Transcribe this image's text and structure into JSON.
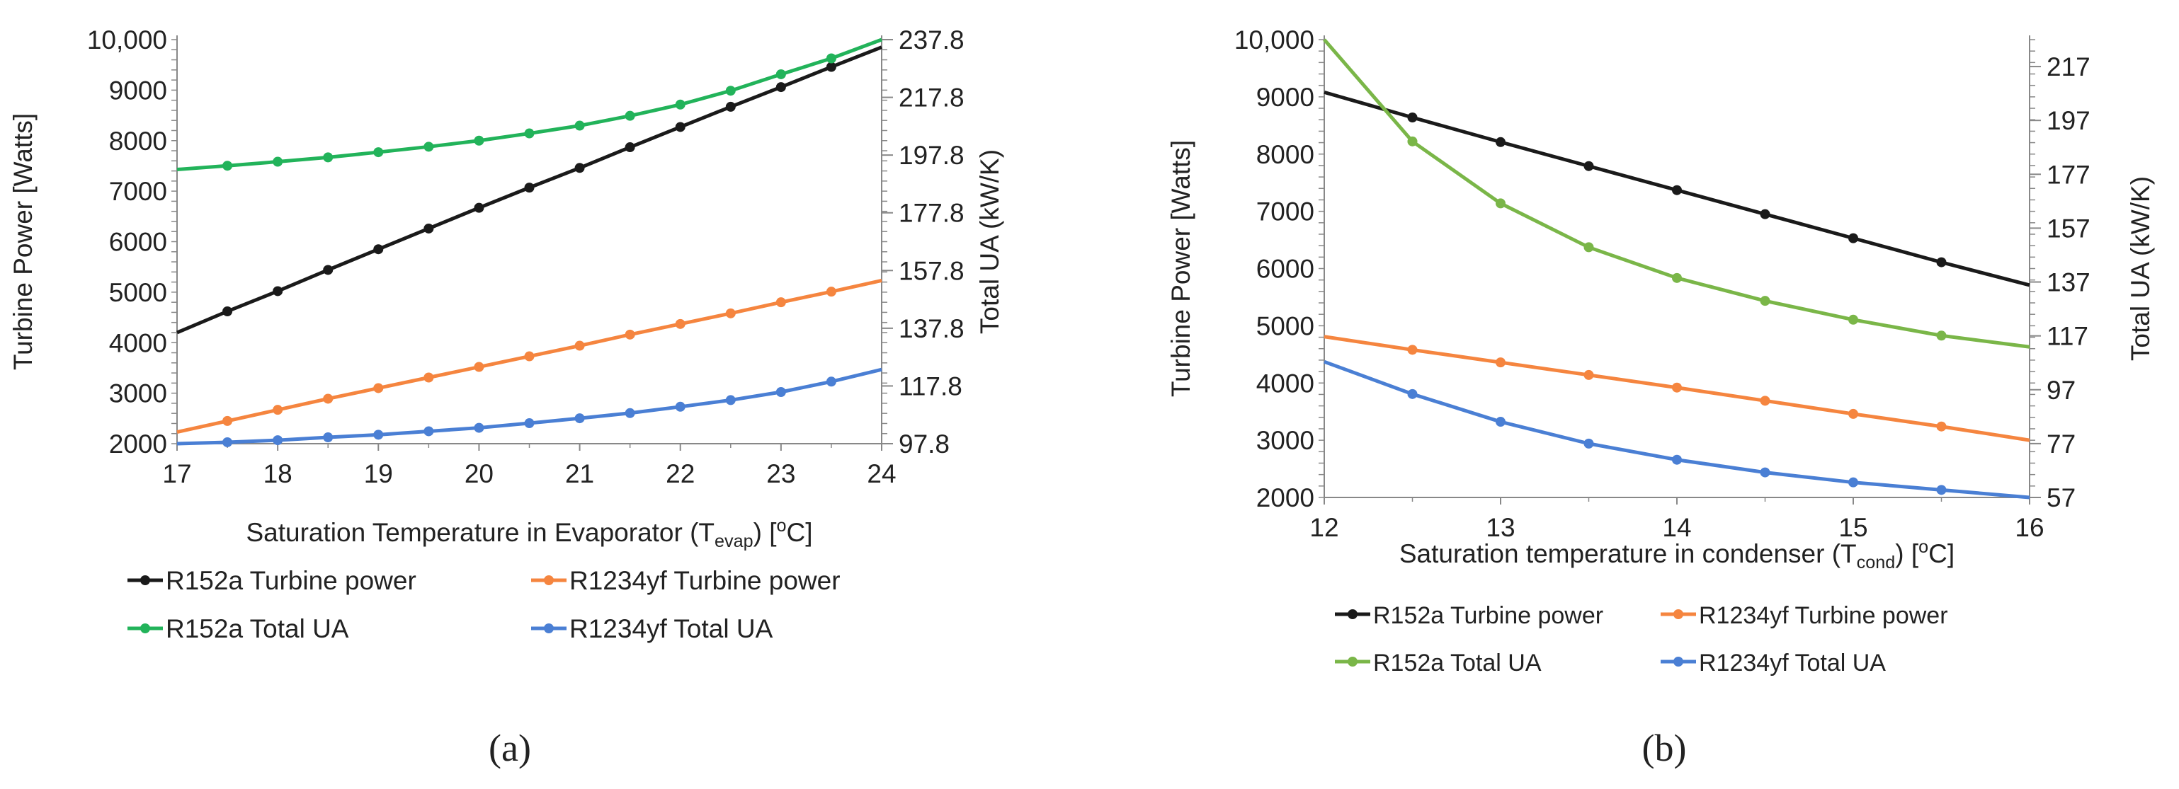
{
  "chart_data": [
    {
      "type": "line",
      "panel_label": "(a)",
      "xlabel": {
        "main": "Saturation Temperature in Evaporator (T",
        "sub": "evap",
        "tail": ") [",
        "sup": "o",
        "end": "C]"
      },
      "ylabel_left": "Turbine Power [Watts]",
      "ylabel_right": "Total UA (kW/K)",
      "xlim": [
        17,
        24
      ],
      "ylim_left": [
        2000,
        10000
      ],
      "ylim_right": [
        97.8,
        237.8
      ],
      "x_ticks": [
        "17",
        "18",
        "19",
        "20",
        "21",
        "22",
        "23",
        "24"
      ],
      "y_ticks_left": [
        "2000",
        "3000",
        "4000",
        "5000",
        "6000",
        "7000",
        "8000",
        "9000",
        "10,000"
      ],
      "y_ticks_right": [
        "97.8",
        "117.8",
        "137.8",
        "157.8",
        "177.8",
        "197.8",
        "217.8",
        "237.8"
      ],
      "legend_position": "bottom",
      "series": [
        {
          "name": "R152a Turbine power",
          "axis": "left",
          "color": "#1a1a1a",
          "x": [
            17,
            17.5,
            18,
            18.5,
            19,
            19.5,
            20,
            20.5,
            21,
            21.5,
            22,
            22.5,
            23,
            23.5,
            24
          ],
          "values": [
            4200,
            4620,
            5020,
            5440,
            5850,
            6260,
            6670,
            7070,
            7460,
            7870,
            8270,
            8670,
            9060,
            9460,
            9850
          ]
        },
        {
          "name": "R1234yf Turbine power",
          "axis": "left",
          "color": "#f5853f",
          "x": [
            17,
            17.5,
            18,
            18.5,
            19,
            19.5,
            20,
            20.5,
            21,
            21.5,
            22,
            22.5,
            23,
            23.5,
            24
          ],
          "values": [
            2230,
            2450,
            2670,
            2890,
            3100,
            3310,
            3520,
            3730,
            3940,
            4160,
            4370,
            4580,
            4800,
            5010,
            5230
          ]
        },
        {
          "name": "R152a Total UA",
          "axis": "right",
          "color": "#22b35a",
          "x": [
            17,
            17.5,
            18,
            18.5,
            19,
            19.5,
            20,
            20.5,
            21,
            21.5,
            22,
            22.5,
            23,
            23.5,
            24
          ],
          "values": [
            192.8,
            194.1,
            195.5,
            197.0,
            198.8,
            200.7,
            202.8,
            205.3,
            208.0,
            211.4,
            215.3,
            220.1,
            225.8,
            231.3,
            237.8
          ]
        },
        {
          "name": "R1234yf Total UA",
          "axis": "right",
          "color": "#4a7fd4",
          "x": [
            17,
            17.5,
            18,
            18.5,
            19,
            19.5,
            20,
            20.5,
            21,
            21.5,
            22,
            22.5,
            23,
            23.5,
            24
          ],
          "values": [
            97.8,
            98.3,
            99.0,
            100.0,
            100.9,
            102.1,
            103.3,
            104.9,
            106.6,
            108.4,
            110.6,
            112.9,
            115.7,
            119.3,
            123.5
          ]
        }
      ]
    },
    {
      "type": "line",
      "panel_label": "(b)",
      "xlabel": {
        "main": "Saturation temperature in condenser (T",
        "sub": "cond",
        "tail": ") [",
        "sup": "o",
        "end": "C]"
      },
      "ylabel_left": "Turbine Power [Watts]",
      "ylabel_right": "Total UA (kW/K)",
      "xlim": [
        12,
        16
      ],
      "ylim_left": [
        2000,
        10000
      ],
      "ylim_right": [
        57,
        227
      ],
      "x_ticks": [
        "12",
        "13",
        "14",
        "15",
        "16"
      ],
      "y_ticks_left": [
        "2000",
        "3000",
        "4000",
        "5000",
        "6000",
        "7000",
        "8000",
        "9000",
        "10,000"
      ],
      "y_ticks_right": [
        "57",
        "77",
        "97",
        "117",
        "137",
        "157",
        "177",
        "197",
        "217"
      ],
      "legend_position": "bottom",
      "series": [
        {
          "name": "R152a Turbine power",
          "axis": "left",
          "color": "#1a1a1a",
          "x": [
            12,
            12.5,
            13,
            13.5,
            14,
            14.5,
            15,
            15.5,
            16
          ],
          "values": [
            9080,
            8640,
            8210,
            7790,
            7370,
            6950,
            6530,
            6110,
            5710
          ]
        },
        {
          "name": "R1234yf Turbine power",
          "axis": "left",
          "color": "#f5853f",
          "x": [
            12,
            12.5,
            13,
            13.5,
            14,
            14.5,
            15,
            15.5,
            16
          ],
          "values": [
            4810,
            4580,
            4360,
            4140,
            3920,
            3690,
            3460,
            3240,
            3000
          ]
        },
        {
          "name": "R152a Total UA",
          "axis": "right",
          "color": "#7ab648",
          "x": [
            12,
            12.5,
            13,
            13.5,
            14,
            14.5,
            15,
            15.5,
            16
          ],
          "values": [
            227.0,
            189.2,
            166.2,
            149.9,
            138.5,
            130.0,
            123.0,
            117.1,
            112.9
          ]
        },
        {
          "name": "R1234yf Total UA",
          "axis": "right",
          "color": "#4a7fd4",
          "x": [
            12,
            12.5,
            13,
            13.5,
            14,
            14.5,
            15,
            15.5,
            16
          ],
          "values": [
            107.4,
            95.4,
            85.1,
            77.0,
            71.0,
            66.3,
            62.6,
            59.8,
            57.0
          ]
        }
      ]
    }
  ]
}
